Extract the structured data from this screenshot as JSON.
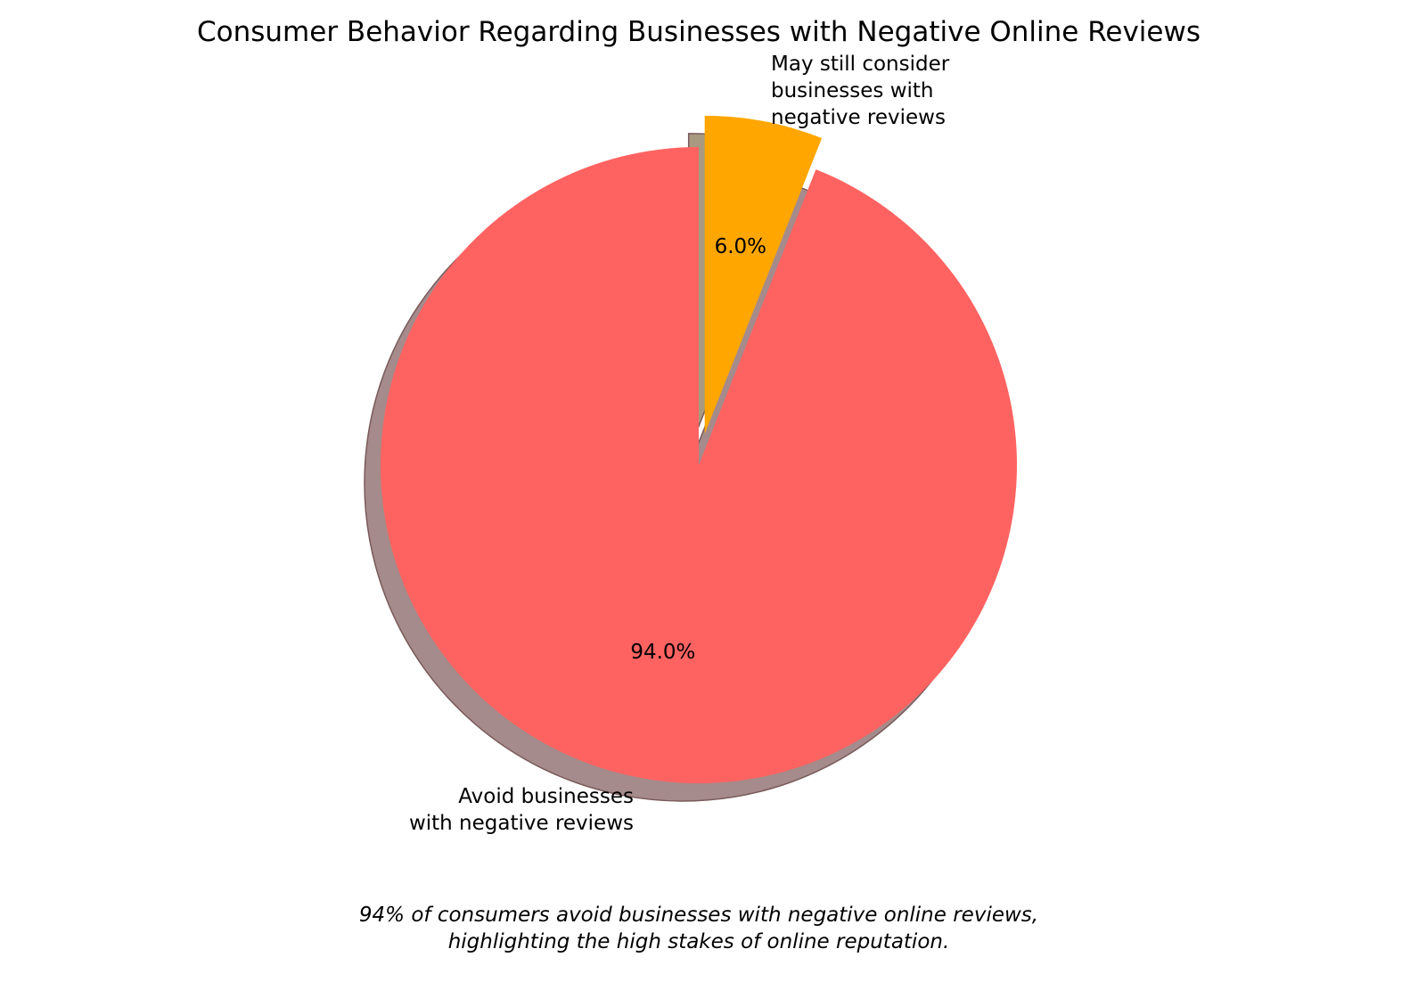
{
  "chart_data": {
    "type": "pie",
    "title": "Consumer Behavior Regarding Businesses with Negative Online Reviews",
    "categories": [
      "Avoid businesses\nwith negative reviews",
      "May still consider\nbusinesses with\nnegative reviews"
    ],
    "values": [
      94,
      6
    ],
    "value_labels": [
      "94.0%",
      "6.0%"
    ],
    "colors": [
      "#ff6361",
      "#ffa600"
    ],
    "shadow_colors": [
      "#a58b8b",
      "#a89a80"
    ],
    "explode": [
      0,
      0.1
    ],
    "start_angle": 90,
    "shadow": true,
    "legend": "none",
    "caption": "94% of consumers avoid businesses with negative online reviews,\nhighlighting the high stakes of online reputation."
  }
}
